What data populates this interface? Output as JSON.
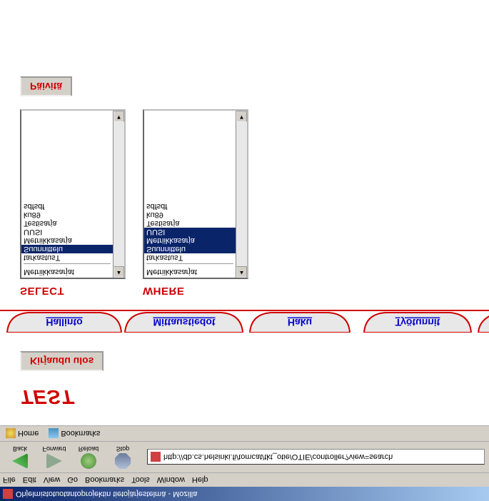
{
  "window": {
    "title": "Ohjelmistotuotantoprojektin tietojärjestelmä - Mozilla"
  },
  "menubar": {
    "items": [
      "File",
      "Edit",
      "View",
      "Go",
      "Bookmarks",
      "Tools",
      "Window",
      "Help"
    ]
  },
  "toolbar": {
    "back": "Back",
    "forward": "Forward",
    "reload": "Reload",
    "stop": "Stop",
    "url": "http://db.cs.helsinki.fi/tomcat/tkt_otie/OTIE/controller?view=search"
  },
  "bookbar": {
    "home": "Home",
    "bookmarks": "Bookmarks"
  },
  "page": {
    "heading": "TEST",
    "logout_label": "Kirjaudu ulos",
    "tabs": [
      {
        "key": "hallinto",
        "label": "Hallinto"
      },
      {
        "key": "mittaustiedot",
        "label": "Mittaustiedot"
      },
      {
        "key": "haku",
        "label": "Haku"
      },
      {
        "key": "tyotunnit",
        "label": "Työtunnit"
      }
    ],
    "select": {
      "title": "SELECT",
      "items": [
        "Metriikkasarjat",
        "tarkastusT",
        "Suunnittelu",
        "Metriikkasarja",
        "UUSI",
        "Testisarja",
        "ku89",
        "sdfsdf"
      ],
      "selected_index": 2
    },
    "where": {
      "title": "WHERE",
      "items": [
        "Metriikkasarjat",
        "tarkastusT",
        "Suunnittelu",
        "Metriikkasarja",
        "UUSI",
        "Testisarja",
        "ku89",
        "sdfsdf"
      ],
      "selected": [
        2,
        3,
        4
      ]
    },
    "update_label": "Päivitä"
  }
}
